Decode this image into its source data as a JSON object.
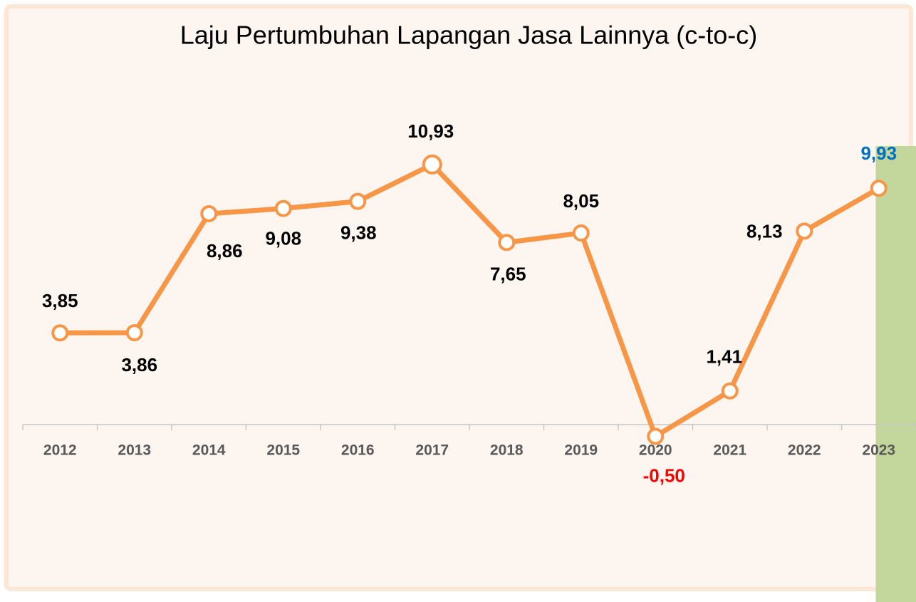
{
  "chart_data": {
    "type": "line",
    "title": "Laju Pertumbuhan Lapangan Jasa Lainnya (c-to-c)",
    "categories": [
      "2012",
      "2013",
      "2014",
      "2015",
      "2016",
      "2017",
      "2018",
      "2019",
      "2020",
      "2021",
      "2022",
      "2023"
    ],
    "series": [
      {
        "name": "Laju Pertumbuhan",
        "color": "#f79646",
        "values": [
          3.85,
          3.86,
          8.86,
          9.08,
          9.38,
          10.93,
          7.65,
          8.05,
          -0.5,
          1.41,
          8.13,
          9.93
        ],
        "value_labels": [
          "3,85",
          "3,86",
          "8,86",
          "9,08",
          "9,38",
          "10,93",
          "7,65",
          "8,05",
          "-0,50",
          "1,41",
          "8,13",
          "9,93"
        ]
      }
    ],
    "ylim": [
      -3,
      15
    ],
    "grid": false,
    "negative_label_color": "#ff0000",
    "highlight_category": "2023",
    "highlight_color": "#c3d69b",
    "highlight_label_color": "#0070c0"
  }
}
